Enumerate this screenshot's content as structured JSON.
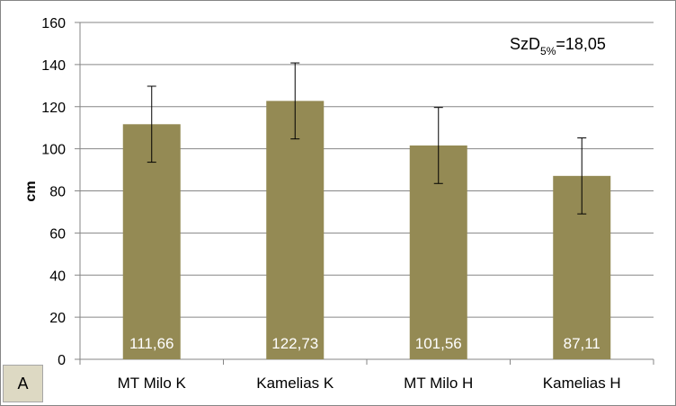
{
  "chart_data": {
    "type": "bar",
    "categories": [
      "MT Milo K",
      "Kamelias K",
      "MT Milo H",
      "Kamelias H"
    ],
    "values": [
      111.66,
      122.73,
      101.56,
      87.11
    ],
    "data_labels": [
      "111,66",
      "122,73",
      "101,56",
      "87,11"
    ],
    "error_bars": [
      18.05,
      18.05,
      18.05,
      18.05
    ],
    "ylabel": "cm",
    "ylim": [
      0,
      160
    ],
    "yticks": [
      "0",
      "20",
      "40",
      "60",
      "80",
      "100",
      "120",
      "140",
      "160"
    ],
    "grid": true,
    "bar_color": "#948a54",
    "annotation": {
      "prefix": "SzD",
      "subscript": "5%",
      "suffix": "=18,05"
    },
    "panel_label": "A"
  }
}
